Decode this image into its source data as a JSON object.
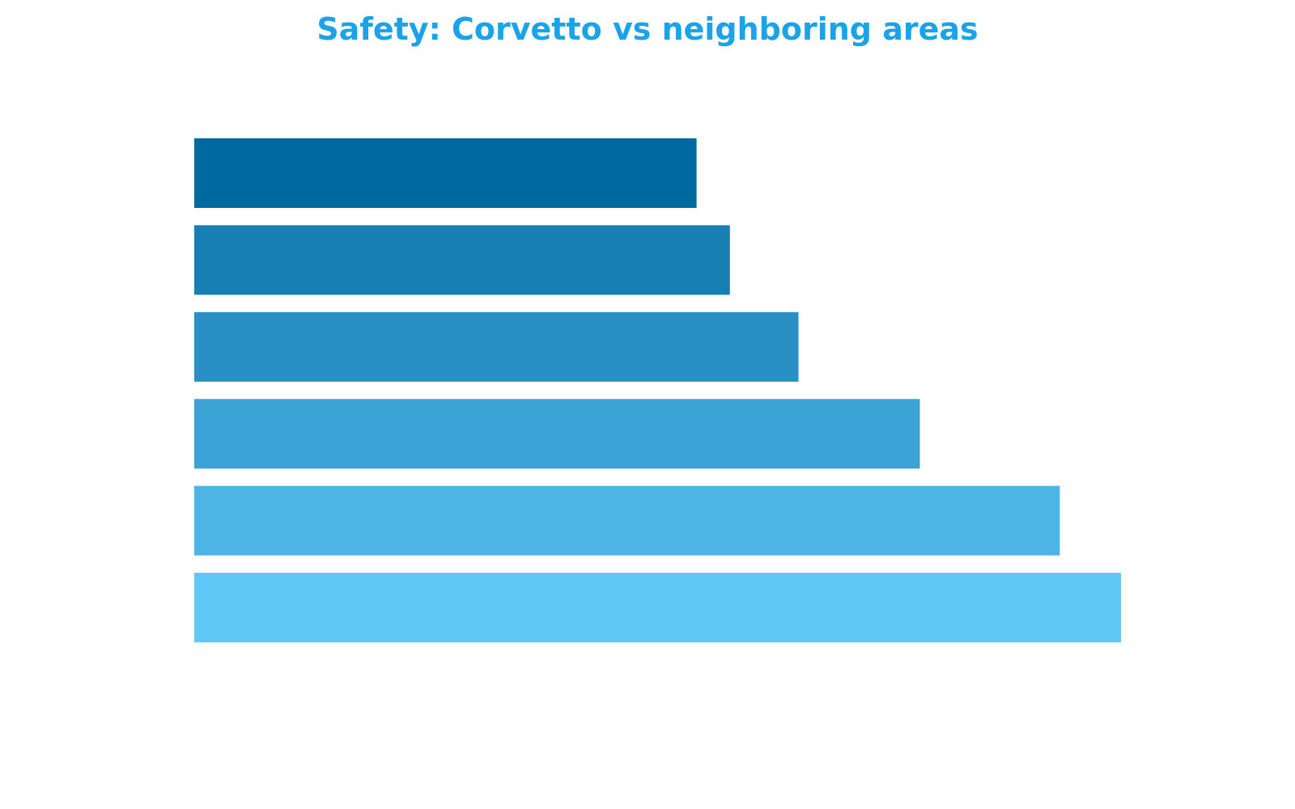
{
  "chart_data": {
    "type": "bar",
    "orientation": "horizontal",
    "title": "Safety: Corvetto vs neighboring areas",
    "title_color": "#1aa3e8",
    "xlabel": "",
    "ylabel": "",
    "categories": [
      "",
      "",
      "",
      "",
      "",
      ""
    ],
    "values": [
      0.542,
      0.578,
      0.652,
      0.783,
      0.934,
      1.0
    ],
    "colors": [
      "#0069a0",
      "#177fb2",
      "#2890c5",
      "#3ba3d5",
      "#4db5e5",
      "#5fc8f7"
    ],
    "xlim": [
      0,
      1
    ],
    "grid": false,
    "legend": "none"
  }
}
